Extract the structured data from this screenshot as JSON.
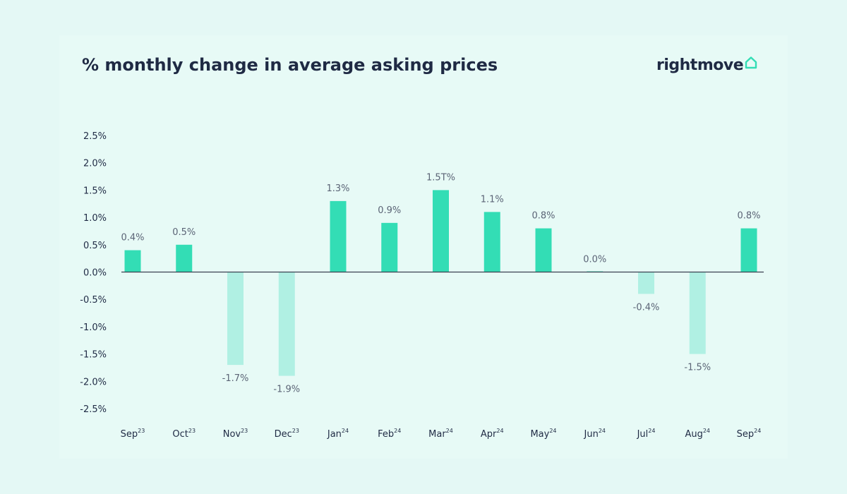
{
  "header": {
    "title": "% monthly change in average asking prices"
  },
  "logo": {
    "text": "rightmove",
    "icon": "house-icon"
  },
  "colors": {
    "positive_bar": "#33ddb5",
    "negative_bar": "#b0f0e3",
    "axis_line": "#3a4150",
    "background": "#e4f8f5"
  },
  "chart_data": {
    "type": "bar",
    "categories": [
      {
        "month": "Sep",
        "year": "23"
      },
      {
        "month": "Oct",
        "year": "23"
      },
      {
        "month": "Nov",
        "year": "23"
      },
      {
        "month": "Dec",
        "year": "23"
      },
      {
        "month": "Jan",
        "year": "24"
      },
      {
        "month": "Feb",
        "year": "24"
      },
      {
        "month": "Mar",
        "year": "24"
      },
      {
        "month": "Apr",
        "year": "24"
      },
      {
        "month": "May",
        "year": "24"
      },
      {
        "month": "Jun",
        "year": "24"
      },
      {
        "month": "Jul",
        "year": "24"
      },
      {
        "month": "Aug",
        "year": "24"
      },
      {
        "month": "Sep",
        "year": "24"
      }
    ],
    "values": [
      0.4,
      0.5,
      -1.7,
      -1.9,
      1.3,
      0.9,
      1.5,
      1.1,
      0.8,
      0.0,
      -0.4,
      -1.5,
      0.8
    ],
    "data_labels": [
      "0.4%",
      "0.5%",
      "-1.7%",
      "-1.9%",
      "1.3%",
      "0.9%",
      "1.5T%",
      "1.1%",
      "0.8%",
      "0.0%",
      "-0.4%",
      "-1.5%",
      "0.8%"
    ],
    "yticks": [
      "2.5%",
      "2.0%",
      "1.5%",
      "1.0%",
      "0.5%",
      "0.0%",
      "-0.5%",
      "-1.0%",
      "-1.5%",
      "-2.0%",
      "-2.5%"
    ],
    "ylim": [
      -2.5,
      2.5
    ],
    "grid": false,
    "legend": "none"
  }
}
